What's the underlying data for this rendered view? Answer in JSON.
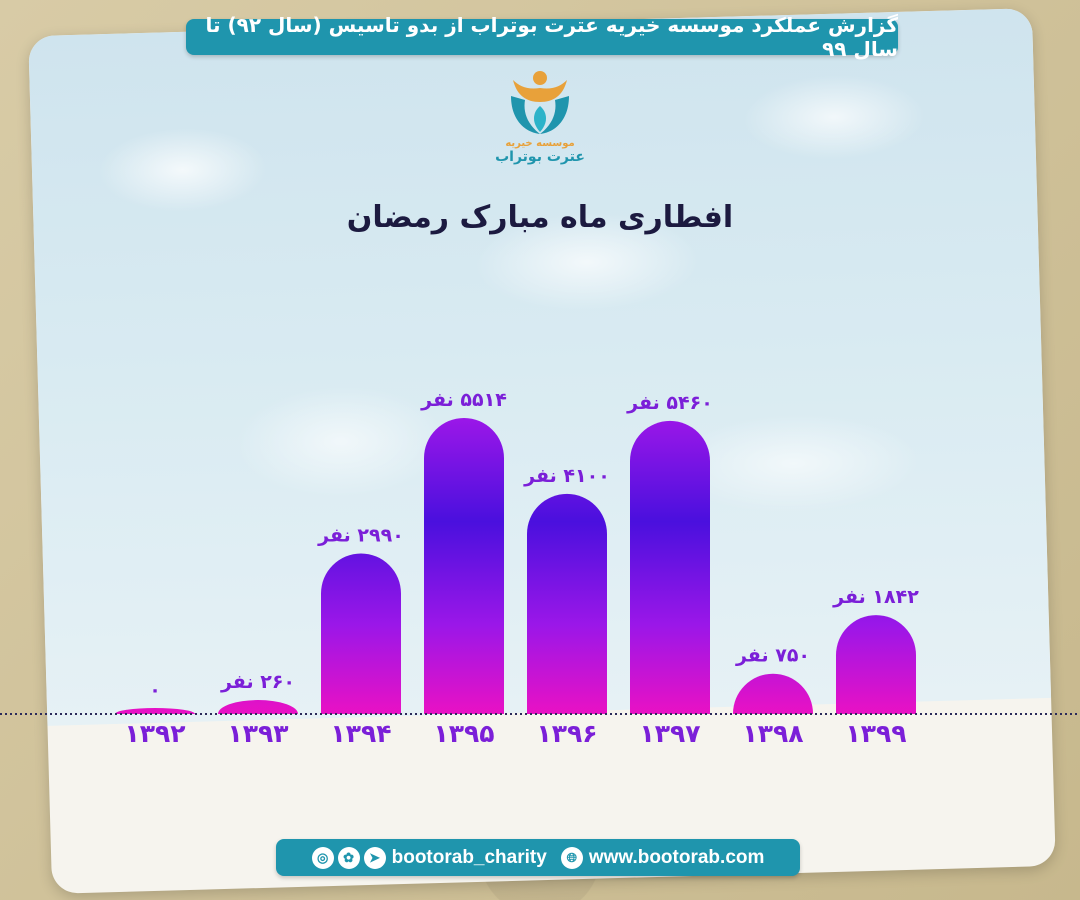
{
  "header": {
    "title": "گزارش عملکرد موسسه خیریه عترت بوتراب از بدو تاسیس (سال ۹۲) تا سال ۹۹"
  },
  "logo": {
    "text": "عترت بوتراب",
    "subtext": "موسسه خیریه"
  },
  "chart_data": {
    "type": "bar",
    "title": "افطاری ماه مبارک رمضان",
    "categories": [
      "۱۳۹۲",
      "۱۳۹۳",
      "۱۳۹۴",
      "۱۳۹۵",
      "۱۳۹۶",
      "۱۳۹۷",
      "۱۳۹۸",
      "۱۳۹۹"
    ],
    "values": [
      0,
      260,
      2990,
      5514,
      4100,
      5460,
      750,
      1842
    ],
    "value_labels": [
      "۰",
      "۲۶۰ نفر",
      "۲۹۹۰ نفر",
      "۵۵۱۴ نفر",
      "۴۱۰۰ نفر",
      "۵۴۶۰ نفر",
      "۷۵۰ نفر",
      "۱۸۴۲ نفر"
    ],
    "ylim": [
      0,
      5514
    ],
    "colors": {
      "low": "#e911c4",
      "mid": "#9b17e8",
      "high": "#4a10de",
      "label": "#7b1fd8",
      "baseline": "#2a2a5a"
    }
  },
  "footer": {
    "handle": "bootorab_charity",
    "website": "www.bootorab.com",
    "social_icons": [
      "instagram-icon",
      "eitaa-icon",
      "telegram-icon"
    ],
    "web_icon": "globe-icon"
  }
}
